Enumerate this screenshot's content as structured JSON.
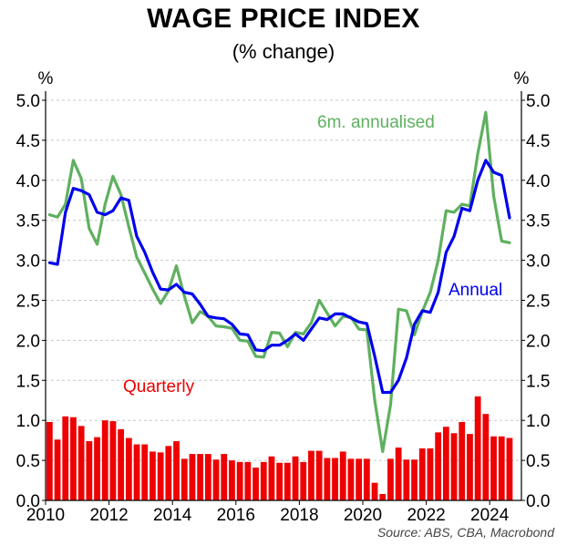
{
  "chart_data": {
    "type": "bar+line",
    "title": "WAGE PRICE INDEX",
    "subtitle": "(% change)",
    "source": "Source: ABS, CBA, Macrobond",
    "y_unit_left": "%",
    "y_unit_right": "%",
    "ylim": [
      0,
      5
    ],
    "y_ticks": [
      "0.0",
      "0.5",
      "1.0",
      "1.5",
      "2.0",
      "2.5",
      "3.0",
      "3.5",
      "4.0",
      "4.5",
      "5.0"
    ],
    "xlim": [
      2010,
      2025
    ],
    "x_ticks": [
      "2010",
      "2012",
      "2014",
      "2016",
      "2018",
      "2020",
      "2022",
      "2024"
    ],
    "grid": true,
    "series": [
      {
        "name": "Quarterly",
        "type": "bar",
        "color": "#ee0000",
        "x": [
          2010.0,
          2010.25,
          2010.5,
          2010.75,
          2011.0,
          2011.25,
          2011.5,
          2011.75,
          2012.0,
          2012.25,
          2012.5,
          2012.75,
          2013.0,
          2013.25,
          2013.5,
          2013.75,
          2014.0,
          2014.25,
          2014.5,
          2014.75,
          2015.0,
          2015.25,
          2015.5,
          2015.75,
          2016.0,
          2016.25,
          2016.5,
          2016.75,
          2017.0,
          2017.25,
          2017.5,
          2017.75,
          2018.0,
          2018.25,
          2018.5,
          2018.75,
          2019.0,
          2019.25,
          2019.5,
          2019.75,
          2020.0,
          2020.25,
          2020.5,
          2020.75,
          2021.0,
          2021.25,
          2021.5,
          2021.75,
          2022.0,
          2022.25,
          2022.5,
          2022.75,
          2023.0,
          2023.25,
          2023.5,
          2023.75,
          2024.0,
          2024.25,
          2024.5
        ],
        "values": [
          0.98,
          0.76,
          1.05,
          1.04,
          0.93,
          0.74,
          0.79,
          1.0,
          0.99,
          0.89,
          0.78,
          0.7,
          0.7,
          0.61,
          0.6,
          0.68,
          0.74,
          0.52,
          0.58,
          0.58,
          0.58,
          0.51,
          0.58,
          0.5,
          0.48,
          0.48,
          0.41,
          0.48,
          0.55,
          0.47,
          0.47,
          0.55,
          0.48,
          0.62,
          0.62,
          0.53,
          0.53,
          0.61,
          0.52,
          0.52,
          0.52,
          0.22,
          0.08,
          0.52,
          0.66,
          0.51,
          0.51,
          0.65,
          0.65,
          0.85,
          0.92,
          0.84,
          0.98,
          0.83,
          1.3,
          1.08,
          0.8,
          0.8,
          0.78
        ]
      },
      {
        "name": "Annual",
        "type": "line",
        "color": "#0000ee",
        "x": [
          2010.0,
          2010.25,
          2010.5,
          2010.75,
          2011.0,
          2011.25,
          2011.5,
          2011.75,
          2012.0,
          2012.25,
          2012.5,
          2012.75,
          2013.0,
          2013.25,
          2013.5,
          2013.75,
          2014.0,
          2014.25,
          2014.5,
          2014.75,
          2015.0,
          2015.25,
          2015.5,
          2015.75,
          2016.0,
          2016.25,
          2016.5,
          2016.75,
          2017.0,
          2017.25,
          2017.5,
          2017.75,
          2018.0,
          2018.25,
          2018.5,
          2018.75,
          2019.0,
          2019.25,
          2019.5,
          2019.75,
          2020.0,
          2020.25,
          2020.5,
          2020.75,
          2021.0,
          2021.25,
          2021.5,
          2021.75,
          2022.0,
          2022.25,
          2022.5,
          2022.75,
          2023.0,
          2023.25,
          2023.5,
          2023.75,
          2024.0,
          2024.25,
          2024.5
        ],
        "values": [
          2.97,
          2.95,
          3.6,
          3.9,
          3.87,
          3.82,
          3.6,
          3.57,
          3.62,
          3.78,
          3.75,
          3.3,
          3.1,
          2.85,
          2.64,
          2.63,
          2.7,
          2.6,
          2.58,
          2.45,
          2.3,
          2.28,
          2.27,
          2.2,
          2.08,
          2.07,
          1.88,
          1.87,
          1.94,
          1.94,
          2.0,
          2.08,
          2.0,
          2.14,
          2.28,
          2.26,
          2.33,
          2.33,
          2.28,
          2.23,
          2.21,
          1.8,
          1.35,
          1.35,
          1.5,
          1.78,
          2.2,
          2.37,
          2.35,
          2.6,
          3.1,
          3.3,
          3.65,
          3.62,
          4.0,
          4.25,
          4.1,
          4.06,
          3.53
        ]
      },
      {
        "name": "6m. annualised",
        "type": "line",
        "color": "#5fb05f",
        "x": [
          2010.0,
          2010.25,
          2010.5,
          2010.75,
          2011.0,
          2011.25,
          2011.5,
          2011.75,
          2012.0,
          2012.25,
          2012.5,
          2012.75,
          2013.0,
          2013.25,
          2013.5,
          2013.75,
          2014.0,
          2014.25,
          2014.5,
          2014.75,
          2015.0,
          2015.25,
          2015.5,
          2015.75,
          2016.0,
          2016.25,
          2016.5,
          2016.75,
          2017.0,
          2017.25,
          2017.5,
          2017.75,
          2018.0,
          2018.25,
          2018.5,
          2018.75,
          2019.0,
          2019.25,
          2019.5,
          2019.75,
          2020.0,
          2020.25,
          2020.5,
          2020.75,
          2021.0,
          2021.25,
          2021.5,
          2021.75,
          2022.0,
          2022.25,
          2022.5,
          2022.75,
          2023.0,
          2023.25,
          2023.5,
          2023.75,
          2024.0,
          2024.25,
          2024.5
        ],
        "values": [
          3.57,
          3.54,
          3.7,
          4.25,
          4.02,
          3.4,
          3.2,
          3.7,
          4.05,
          3.82,
          3.42,
          3.04,
          2.84,
          2.64,
          2.46,
          2.62,
          2.93,
          2.55,
          2.22,
          2.36,
          2.3,
          2.18,
          2.17,
          2.15,
          2.0,
          1.99,
          1.8,
          1.79,
          2.1,
          2.09,
          1.92,
          2.1,
          2.08,
          2.22,
          2.5,
          2.34,
          2.18,
          2.3,
          2.29,
          2.14,
          2.13,
          1.25,
          0.61,
          1.2,
          2.39,
          2.37,
          2.07,
          2.36,
          2.6,
          3.0,
          3.62,
          3.6,
          3.7,
          3.68,
          4.33,
          4.85,
          3.8,
          3.24,
          3.22
        ]
      }
    ],
    "annotations": [
      {
        "text": "6m. annualised",
        "color": "#5fb05f"
      },
      {
        "text": "Annual",
        "color": "#0000ee"
      },
      {
        "text": "Quarterly",
        "color": "#ee0000"
      }
    ]
  }
}
